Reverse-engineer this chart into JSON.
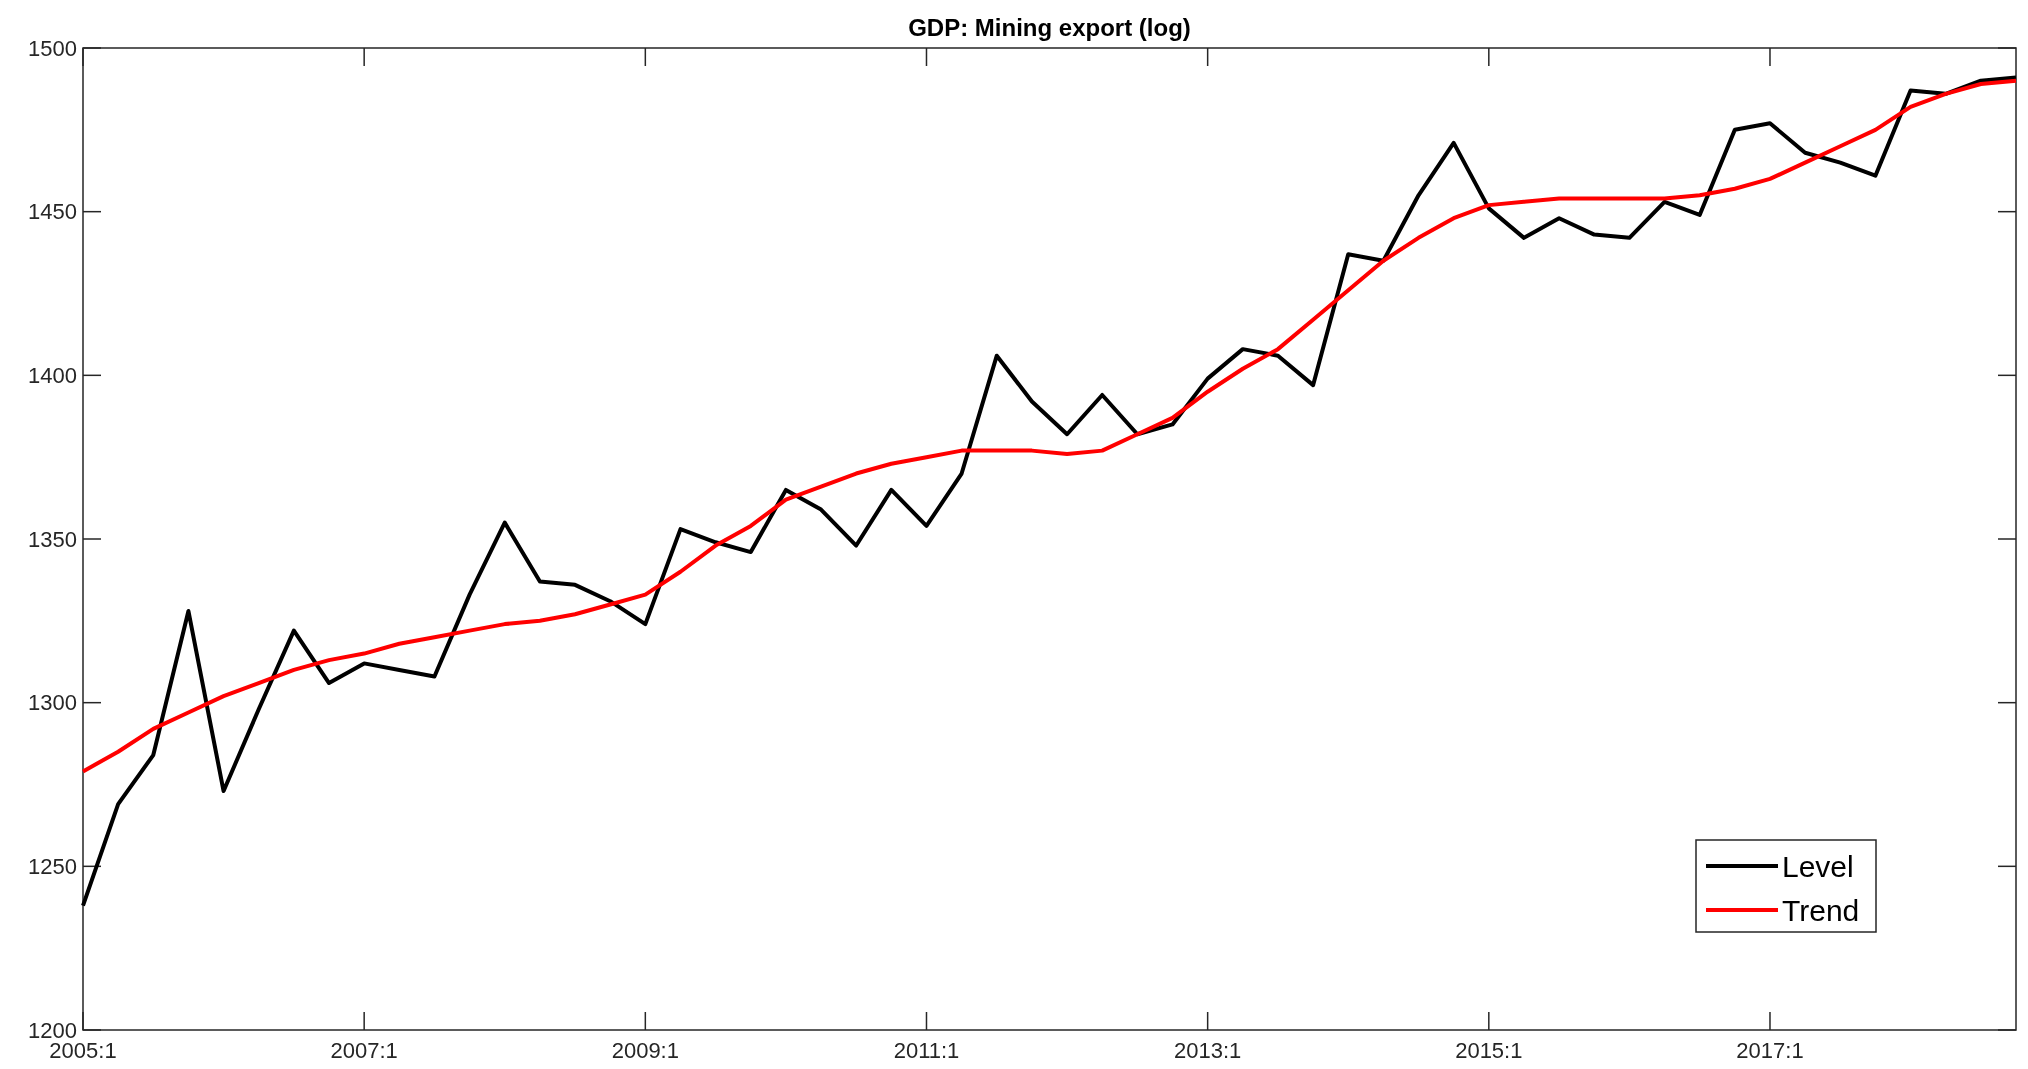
{
  "chart_data": {
    "type": "line",
    "title": "GDP: Mining export (log)",
    "categories": [
      "2005:1",
      null,
      null,
      null,
      null,
      null,
      null,
      null,
      "2007:1",
      null,
      null,
      null,
      null,
      null,
      null,
      null,
      "2009:1",
      null,
      null,
      null,
      null,
      null,
      null,
      null,
      "2011:1",
      null,
      null,
      null,
      null,
      null,
      null,
      null,
      "2013:1",
      null,
      null,
      null,
      null,
      null,
      null,
      null,
      "2015:1",
      null,
      null,
      null,
      null,
      null,
      null,
      null,
      "2017:1",
      null,
      null,
      null,
      null,
      null,
      null,
      null
    ],
    "series": [
      {
        "name": "Level",
        "color": "#000000",
        "values": [
          1238,
          1269,
          1284,
          1328,
          1273,
          1298,
          1322,
          1306,
          1312,
          1310,
          1308,
          1333,
          1355,
          1337,
          1336,
          1331,
          1324,
          1353,
          1349,
          1346,
          1365,
          1359,
          1348,
          1365,
          1354,
          1370,
          1406,
          1392,
          1382,
          1394,
          1382,
          1385,
          1399,
          1408,
          1406,
          1397,
          1437,
          1435,
          1455,
          1471,
          1451,
          1442,
          1448,
          1443,
          1442,
          1453,
          1449,
          1475,
          1477,
          1468,
          1465,
          1461,
          1487,
          1486,
          1490,
          1491
        ]
      },
      {
        "name": "Trend",
        "color": "#ff0000",
        "values": [
          1279,
          1285,
          1292,
          1297,
          1302,
          1306,
          1310,
          1313,
          1315,
          1318,
          1320,
          1322,
          1324,
          1325,
          1327,
          1330,
          1333,
          1340,
          1348,
          1354,
          1362,
          1366,
          1370,
          1373,
          1375,
          1377,
          1377,
          1377,
          1376,
          1377,
          1382,
          1387,
          1395,
          1402,
          1408,
          1417,
          1426,
          1435,
          1442,
          1448,
          1452,
          1453,
          1454,
          1454,
          1454,
          1454,
          1455,
          1457,
          1460,
          1465,
          1470,
          1475,
          1482,
          1486,
          1489,
          1490
        ]
      }
    ],
    "ylim": [
      1200,
      1500
    ],
    "yticks": [
      1200,
      1250,
      1300,
      1350,
      1400,
      1450,
      1500
    ],
    "legend": "bottom right",
    "line_style": "solid",
    "marker": "none"
  }
}
